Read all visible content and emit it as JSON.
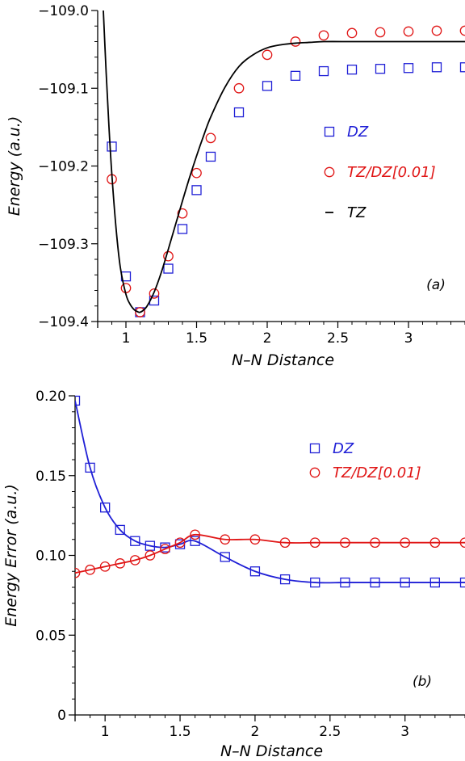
{
  "colors": {
    "dz": "#1f1fd6",
    "tzdz": "#e01515",
    "tz": "#000000",
    "axis": "#000000"
  },
  "chart_data": [
    {
      "type": "line",
      "panel_label": "(a)",
      "xlabel": "N–N Distance",
      "ylabel": "Energy (a.u.)",
      "xlim": [
        0.8,
        3.4
      ],
      "ylim": [
        -109.4,
        -109.0
      ],
      "xticks": [
        1,
        1.5,
        2,
        2.5,
        3
      ],
      "xtick_labels": [
        "1",
        "1.5",
        "2",
        "2.5",
        "3"
      ],
      "yticks": [
        -109.4,
        -109.3,
        -109.2,
        -109.1,
        -109.0
      ],
      "ytick_labels": [
        "−109.4",
        "−109.3",
        "−109.2",
        "−109.1",
        "−109.0"
      ],
      "grid": false,
      "legend_position": "right",
      "series": [
        {
          "name": "DZ",
          "style": "markers",
          "marker": "square",
          "color": "#1f1fd6",
          "x": [
            0.9,
            1.0,
            1.1,
            1.2,
            1.3,
            1.4,
            1.5,
            1.6,
            1.8,
            2.0,
            2.2,
            2.4,
            2.6,
            2.8,
            3.0,
            3.2,
            3.4
          ],
          "y": [
            -109.175,
            -109.342,
            -109.388,
            -109.373,
            -109.332,
            -109.281,
            -109.231,
            -109.188,
            -109.131,
            -109.097,
            -109.084,
            -109.078,
            -109.076,
            -109.075,
            -109.074,
            -109.073,
            -109.073
          ]
        },
        {
          "name": "TZ/DZ[0.01]",
          "style": "markers",
          "marker": "circle",
          "color": "#e01515",
          "x": [
            0.9,
            1.0,
            1.1,
            1.2,
            1.3,
            1.4,
            1.5,
            1.6,
            1.8,
            2.0,
            2.2,
            2.4,
            2.6,
            2.8,
            3.0,
            3.2,
            3.4
          ],
          "y": [
            -109.217,
            -109.357,
            -109.388,
            -109.364,
            -109.316,
            -109.261,
            -109.209,
            -109.164,
            -109.1,
            -109.057,
            -109.04,
            -109.032,
            -109.029,
            -109.028,
            -109.027,
            -109.026,
            -109.026
          ]
        },
        {
          "name": "TZ",
          "style": "line",
          "color": "#000000",
          "x": [
            0.84,
            0.86,
            0.88,
            0.9,
            0.93,
            0.96,
            1.0,
            1.03,
            1.06,
            1.09,
            1.1,
            1.12,
            1.15,
            1.2,
            1.25,
            1.3,
            1.35,
            1.4,
            1.45,
            1.5,
            1.55,
            1.6,
            1.7,
            1.8,
            1.9,
            2.0,
            2.1,
            2.2,
            2.3,
            2.4,
            2.6,
            2.8,
            3.0,
            3.2,
            3.4
          ],
          "y": [
            -109.0,
            -109.08,
            -109.15,
            -109.21,
            -109.28,
            -109.33,
            -109.365,
            -109.378,
            -109.385,
            -109.388,
            -109.388,
            -109.386,
            -109.38,
            -109.362,
            -109.337,
            -109.307,
            -109.276,
            -109.245,
            -109.215,
            -109.187,
            -109.161,
            -109.137,
            -109.099,
            -109.072,
            -109.057,
            -109.048,
            -109.044,
            -109.042,
            -109.041,
            -109.04,
            -109.04,
            -109.04,
            -109.04,
            -109.04,
            -109.04
          ]
        }
      ]
    },
    {
      "type": "line",
      "panel_label": "(b)",
      "xlabel": "N–N Distance",
      "ylabel": "Energy Error (a.u.)",
      "xlim": [
        0.8,
        3.4
      ],
      "ylim": [
        0,
        0.2
      ],
      "xticks": [
        1,
        1.5,
        2,
        2.5,
        3
      ],
      "xtick_labels": [
        "1",
        "1.5",
        "2",
        "2.5",
        "3"
      ],
      "yticks": [
        0,
        0.05,
        0.1,
        0.15,
        0.2
      ],
      "ytick_labels": [
        "0",
        "0.05",
        "0.10",
        "0.15",
        "0.20"
      ],
      "grid": false,
      "legend_position": "top-right",
      "series": [
        {
          "name": "DZ",
          "style": "markers+line",
          "marker": "square",
          "color": "#1f1fd6",
          "x": [
            0.8,
            0.9,
            1.0,
            1.1,
            1.2,
            1.3,
            1.4,
            1.5,
            1.6,
            1.8,
            2.0,
            2.2,
            2.4,
            2.6,
            2.8,
            3.0,
            3.2,
            3.4
          ],
          "y": [
            0.197,
            0.155,
            0.13,
            0.116,
            0.109,
            0.106,
            0.105,
            0.107,
            0.109,
            0.099,
            0.09,
            0.085,
            0.083,
            0.083,
            0.083,
            0.083,
            0.083,
            0.083
          ]
        },
        {
          "name": "TZ/DZ[0.01]",
          "style": "markers+line",
          "marker": "circle",
          "color": "#e01515",
          "x": [
            0.8,
            0.9,
            1.0,
            1.1,
            1.2,
            1.3,
            1.4,
            1.5,
            1.6,
            1.8,
            2.0,
            2.2,
            2.4,
            2.6,
            2.8,
            3.0,
            3.2,
            3.4
          ],
          "y": [
            0.089,
            0.091,
            0.093,
            0.095,
            0.097,
            0.1,
            0.104,
            0.108,
            0.113,
            0.11,
            0.11,
            0.108,
            0.108,
            0.108,
            0.108,
            0.108,
            0.108,
            0.108
          ]
        }
      ]
    }
  ]
}
